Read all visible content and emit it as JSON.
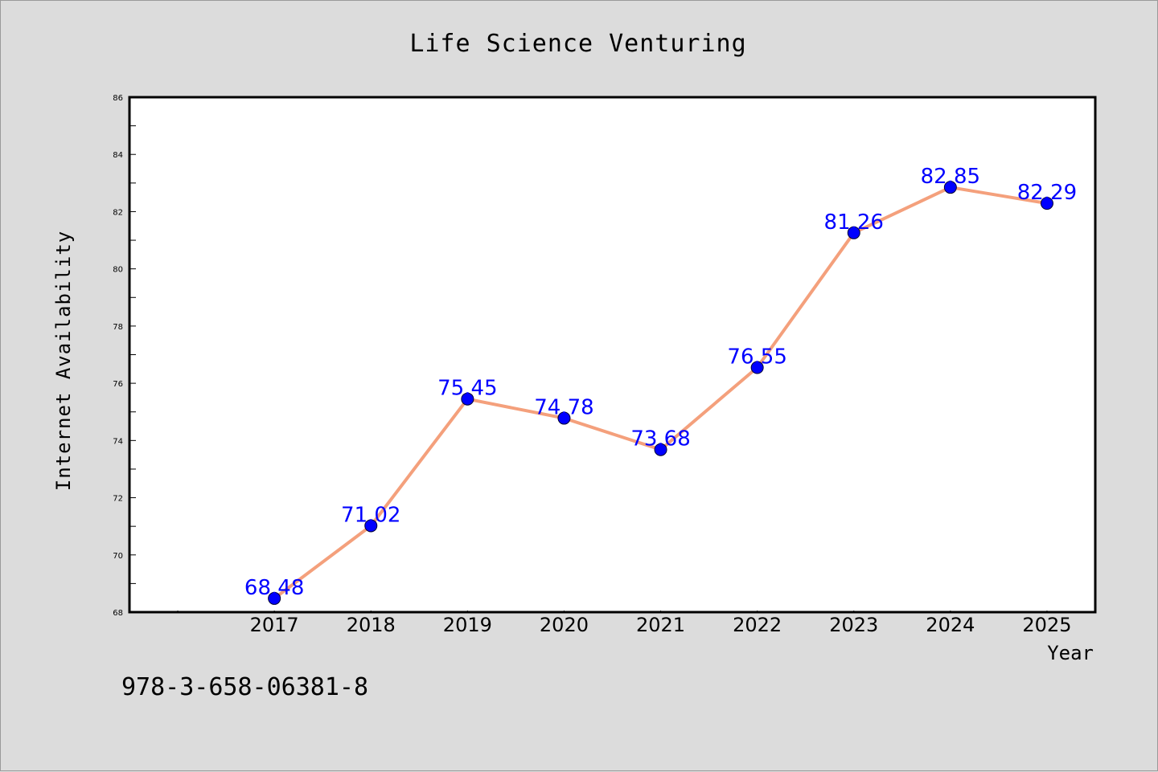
{
  "colors": {
    "background": "#dcdcdc",
    "plot_background": "#ffffff",
    "line": "#f4a07c",
    "marker": "#0000ff",
    "data_label": "#0000ff",
    "axis": "#000000"
  },
  "chart_data": {
    "type": "line",
    "title": "Life Science Venturing",
    "xlabel": "Year",
    "ylabel": "Internet Availability",
    "x": [
      2017,
      2018,
      2019,
      2020,
      2021,
      2022,
      2023,
      2024,
      2025
    ],
    "series": [
      {
        "values": [
          68.48,
          71.02,
          75.45,
          74.78,
          73.68,
          76.55,
          81.26,
          82.85,
          82.29
        ]
      }
    ],
    "data_labels": [
      "68.48",
      "71.02",
      "75.45",
      "74.78",
      "73.68",
      "76.55",
      "81.26",
      "82.85",
      "82.29"
    ],
    "xlim": [
      2015.5,
      2025.5
    ],
    "ylim": [
      68,
      86
    ],
    "yticks": [
      68,
      70,
      72,
      74,
      76,
      78,
      80,
      82,
      84,
      86
    ],
    "grid": false,
    "legend": "none"
  },
  "footer": {
    "text": "978-3-658-06381-8"
  }
}
